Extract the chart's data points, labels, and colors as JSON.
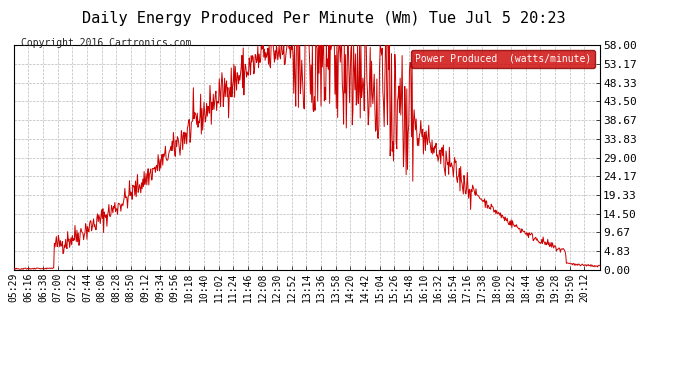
{
  "title": "Daily Energy Produced Per Minute (Wm) Tue Jul 5 20:23",
  "copyright": "Copyright 2016 Cartronics.com",
  "legend_label": "Power Produced  (watts/minute)",
  "legend_bg": "#cc0000",
  "legend_fg": "#ffffff",
  "line_color": "#cc0000",
  "bg_color": "#ffffff",
  "grid_color": "#bbbbbb",
  "title_color": "#000000",
  "ymin": 0.0,
  "ymax": 58.0,
  "yticks": [
    0.0,
    4.83,
    9.67,
    14.5,
    19.33,
    24.17,
    29.0,
    33.83,
    38.67,
    43.5,
    48.33,
    53.17,
    58.0
  ],
  "xtick_labels": [
    "05:29",
    "06:16",
    "06:38",
    "07:00",
    "07:22",
    "07:44",
    "08:06",
    "08:28",
    "08:50",
    "09:12",
    "09:34",
    "09:56",
    "10:18",
    "10:40",
    "11:02",
    "11:24",
    "11:46",
    "12:08",
    "12:30",
    "12:52",
    "13:14",
    "13:36",
    "13:58",
    "14:20",
    "14:42",
    "15:04",
    "15:26",
    "15:48",
    "16:10",
    "16:32",
    "16:54",
    "17:16",
    "17:38",
    "18:00",
    "18:22",
    "18:44",
    "19:06",
    "19:28",
    "19:50",
    "20:12"
  ],
  "font_family": "monospace",
  "title_fontsize": 11,
  "copyright_fontsize": 7,
  "ytick_fontsize": 8,
  "xtick_fontsize": 7
}
